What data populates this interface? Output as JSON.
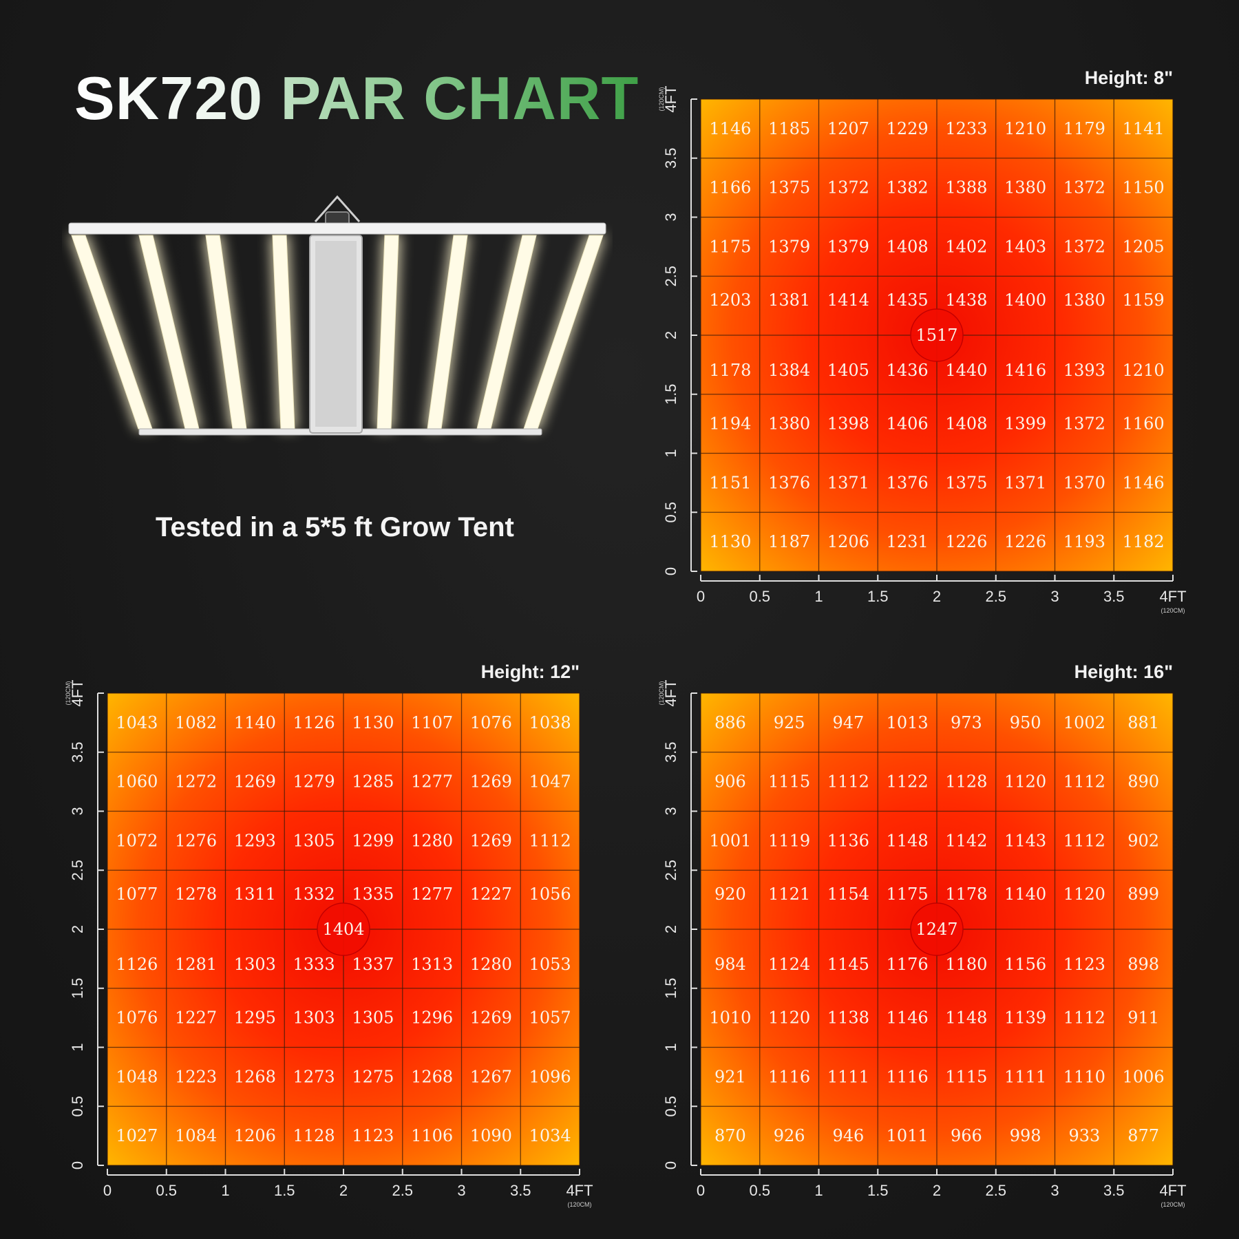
{
  "title": {
    "model": "SK720",
    "rest": "PAR CHART"
  },
  "subtitle": "Tested in a 5*5 ft Grow Tent",
  "colors": {
    "hot": "#f20d00",
    "mid": "#ff5000",
    "edge": "#ffb300",
    "grid_line": "#3a1a0a",
    "axis": "#e0e0e0",
    "title_green": "#5cb563"
  },
  "icons": {
    "product": "led-grow-light-fixture-icon"
  },
  "axis": {
    "ticks": [
      "0",
      "0.5",
      "1",
      "1.5",
      "2",
      "2.5",
      "3",
      "3.5",
      "4FT"
    ],
    "unit": "(120CM)"
  },
  "chart_data": [
    {
      "type": "heatmap",
      "title": "Height: 8\"",
      "xlabel": "",
      "ylabel": "",
      "xlim": [
        0,
        4
      ],
      "ylim": [
        0,
        4
      ],
      "grid": true,
      "center_label": "1517",
      "values": [
        [
          1146,
          1185,
          1207,
          1229,
          1233,
          1210,
          1179,
          1141
        ],
        [
          1166,
          1375,
          1372,
          1382,
          1388,
          1380,
          1372,
          1150
        ],
        [
          1175,
          1379,
          1379,
          1408,
          1402,
          1403,
          1372,
          1205
        ],
        [
          1203,
          1381,
          1414,
          1435,
          1438,
          1400,
          1380,
          1159
        ],
        [
          1178,
          1384,
          1405,
          1436,
          1440,
          1416,
          1393,
          1210
        ],
        [
          1194,
          1380,
          1398,
          1406,
          1408,
          1399,
          1372,
          1160
        ],
        [
          1151,
          1376,
          1371,
          1376,
          1375,
          1371,
          1370,
          1146
        ],
        [
          1130,
          1187,
          1206,
          1231,
          1226,
          1226,
          1193,
          1182
        ]
      ]
    },
    {
      "type": "heatmap",
      "title": "Height: 12\"",
      "xlabel": "",
      "ylabel": "",
      "xlim": [
        0,
        4
      ],
      "ylim": [
        0,
        4
      ],
      "grid": true,
      "center_label": "1404",
      "values": [
        [
          1043,
          1082,
          1140,
          1126,
          1130,
          1107,
          1076,
          1038
        ],
        [
          1060,
          1272,
          1269,
          1279,
          1285,
          1277,
          1269,
          1047
        ],
        [
          1072,
          1276,
          1293,
          1305,
          1299,
          1280,
          1269,
          1112
        ],
        [
          1077,
          1278,
          1311,
          1332,
          1335,
          1277,
          1227,
          1056
        ],
        [
          1126,
          1281,
          1303,
          1333,
          1337,
          1313,
          1280,
          1053
        ],
        [
          1076,
          1227,
          1295,
          1303,
          1305,
          1296,
          1269,
          1057
        ],
        [
          1048,
          1223,
          1268,
          1273,
          1275,
          1268,
          1267,
          1096
        ],
        [
          1027,
          1084,
          1206,
          1128,
          1123,
          1106,
          1090,
          1034
        ]
      ]
    },
    {
      "type": "heatmap",
      "title": "Height: 16\"",
      "xlabel": "",
      "ylabel": "",
      "xlim": [
        0,
        4
      ],
      "ylim": [
        0,
        4
      ],
      "grid": true,
      "center_label": "1247",
      "values": [
        [
          886,
          925,
          947,
          1013,
          973,
          950,
          1002,
          881
        ],
        [
          906,
          1115,
          1112,
          1122,
          1128,
          1120,
          1112,
          890
        ],
        [
          1001,
          1119,
          1136,
          1148,
          1142,
          1143,
          1112,
          902
        ],
        [
          920,
          1121,
          1154,
          1175,
          1178,
          1140,
          1120,
          899
        ],
        [
          984,
          1124,
          1145,
          1176,
          1180,
          1156,
          1123,
          898
        ],
        [
          1010,
          1120,
          1138,
          1146,
          1148,
          1139,
          1112,
          911
        ],
        [
          921,
          1116,
          1111,
          1116,
          1115,
          1111,
          1110,
          1006
        ],
        [
          870,
          926,
          946,
          1011,
          966,
          998,
          933,
          877
        ]
      ]
    }
  ]
}
